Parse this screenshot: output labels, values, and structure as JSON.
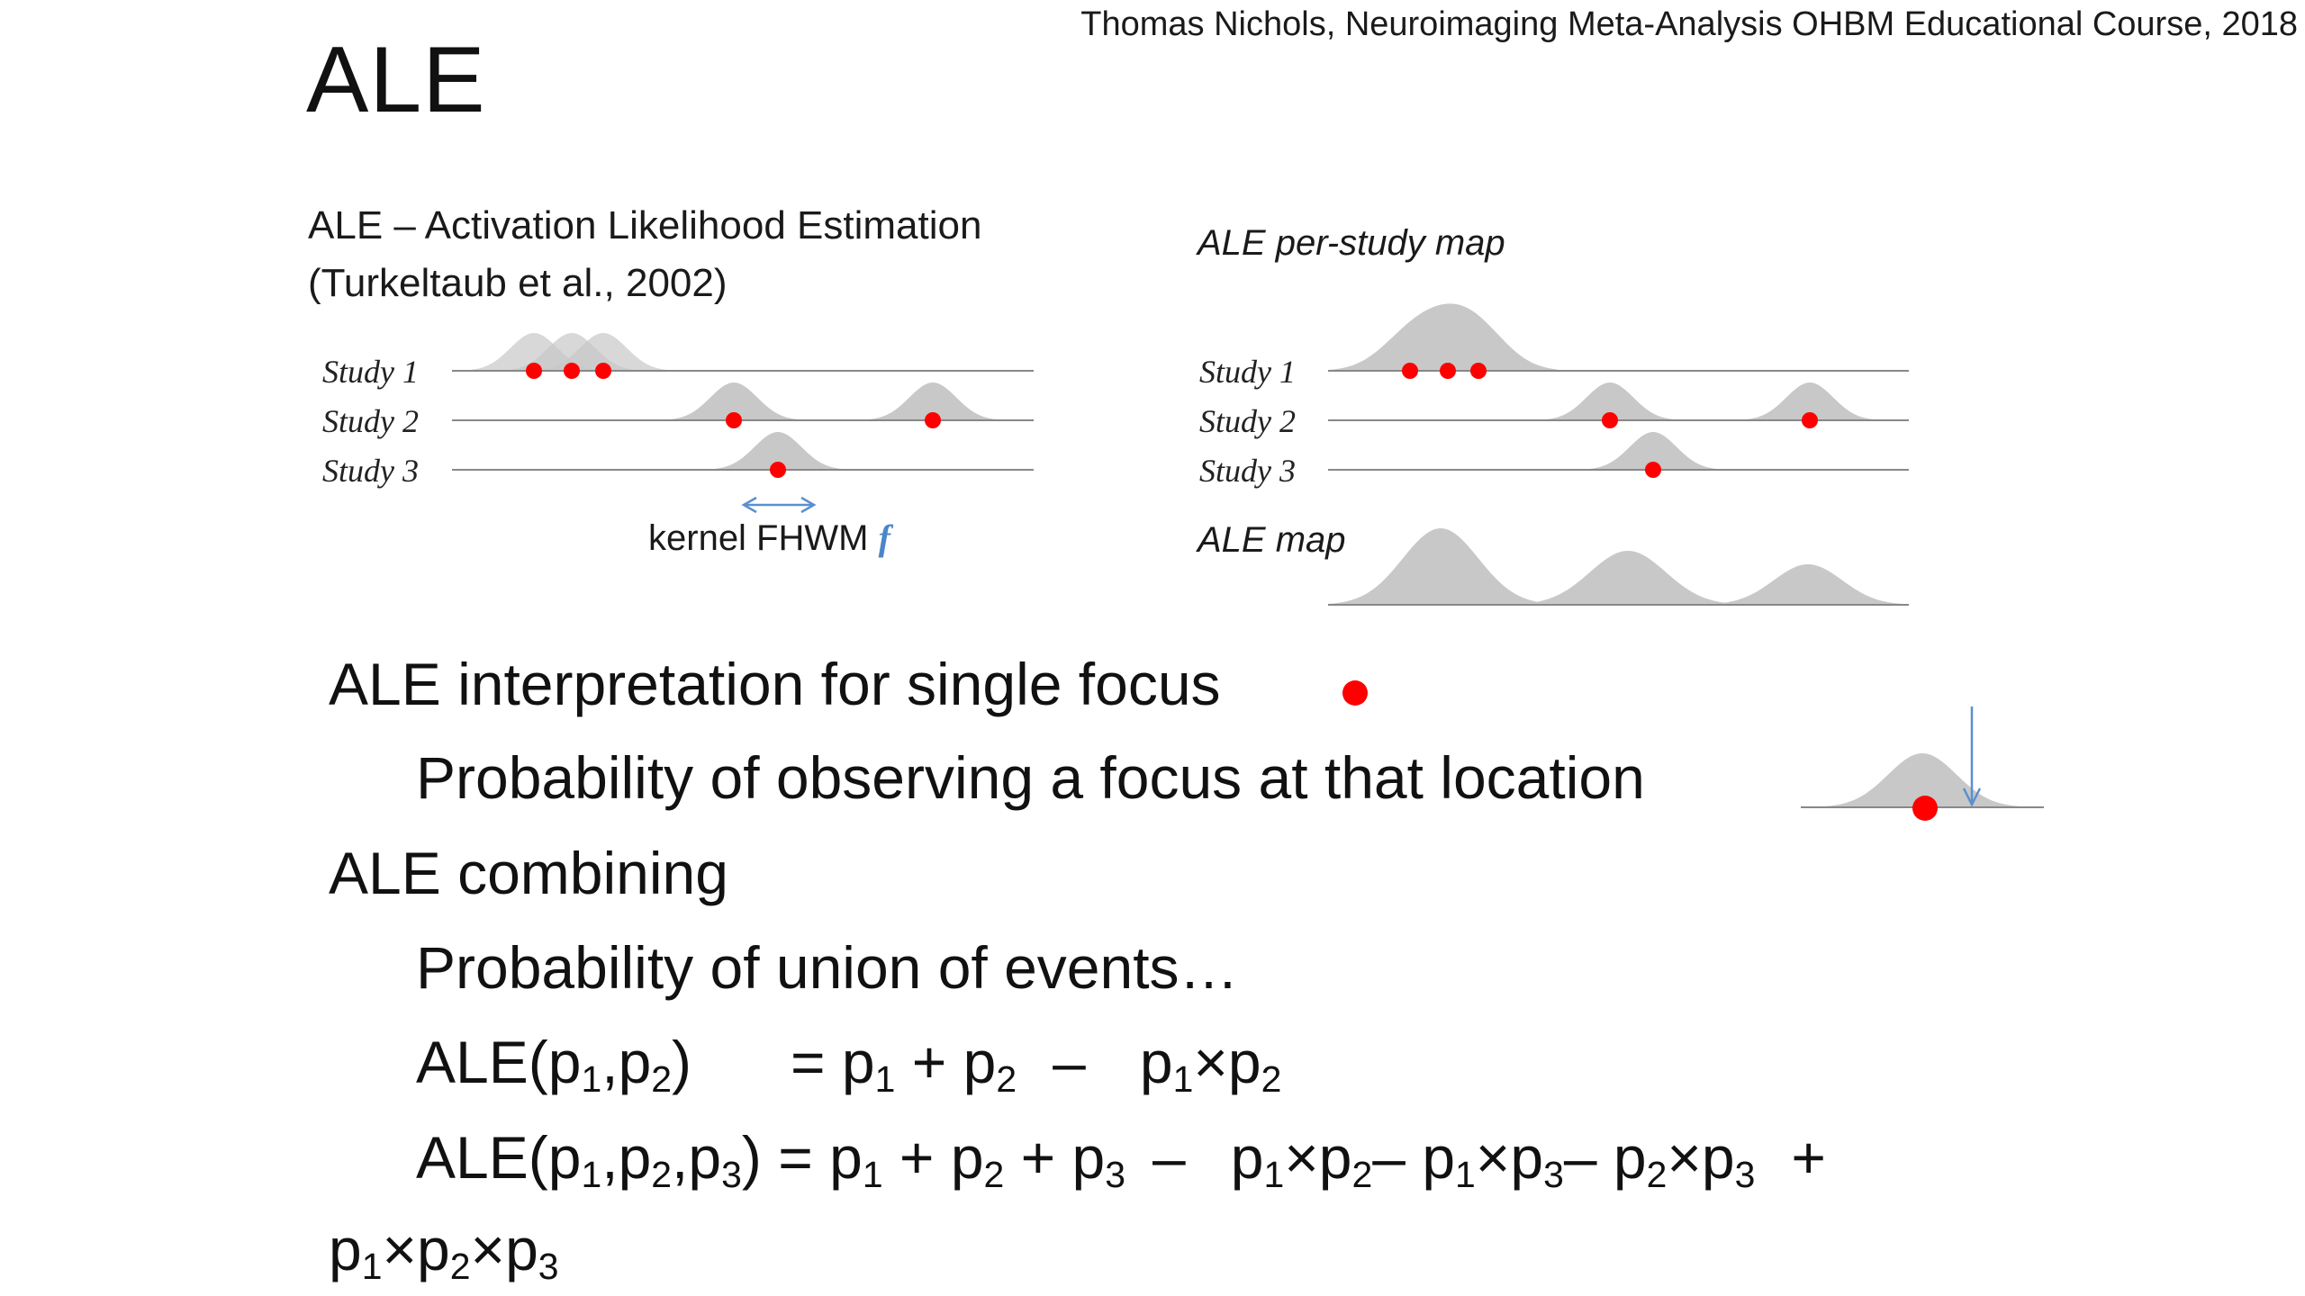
{
  "credit": "Thomas Nichols, Neuroimaging Meta-Analysis OHBM Educational Course, 2018",
  "title": "ALE",
  "left_panel": {
    "heading_line1": "ALE – Activation Likelihood Estimation",
    "heading_line2": "(Turkeltaub et al., 2002)",
    "studies": [
      "Study 1",
      "Study 2",
      "Study 3"
    ],
    "kernel_label": "kernel FHWM",
    "kernel_symbol": "f"
  },
  "right_panel": {
    "per_study_label": "ALE per-study map",
    "studies": [
      "Study 1",
      "Study 2",
      "Study 3"
    ],
    "map_label": "ALE map"
  },
  "bullets": {
    "interp_heading": "ALE interpretation for single focus",
    "interp_detail": "Probability of observing a focus at that location",
    "combining_heading": "ALE combining",
    "combining_detail": "Probability of union of events…"
  },
  "formulas": {
    "ale_prefix": "ALE(",
    "p": "p",
    "i1": "1",
    "i2": "2",
    "i3": "3",
    "comma": ",",
    "close": ")",
    "eq": "=",
    "plus": "+",
    "minus": "–",
    "times": "×"
  },
  "colors": {
    "focus": "#ff0000",
    "kernel": "#c8c8c8",
    "axis": "#888888",
    "arrow": "#5b8fcf"
  }
}
